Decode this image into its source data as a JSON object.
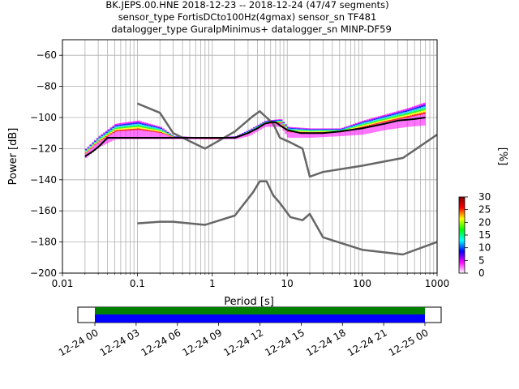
{
  "chart_data": {
    "type": "line",
    "title_lines": [
      "BK.JEPS.00.HNE   2018-12-23 -- 2018-12-24  (47/47 segments)",
      "sensor_type FortisDCto100Hz(4gmax) sensor_sn TF481",
      "datalogger_type GuralpMinimus+ datalogger_sn MINP-DF59"
    ],
    "xlabel": "Period [s]",
    "ylabel": "Power [dB]",
    "xscale": "log",
    "xlim": [
      0.01,
      1000
    ],
    "ylim": [
      -200,
      -50
    ],
    "xticks": [
      {
        "v": 0.01,
        "label": "0.01"
      },
      {
        "v": 0.1,
        "label": "0.1"
      },
      {
        "v": 1,
        "label": "1"
      },
      {
        "v": 10,
        "label": "10"
      },
      {
        "v": 100,
        "label": "100"
      },
      {
        "v": 1000,
        "label": "1000"
      }
    ],
    "yticks": [
      -60,
      -80,
      -100,
      -120,
      -140,
      -160,
      -180,
      -200
    ],
    "grid": true,
    "series": [
      {
        "color": "#666666",
        "x": [
          0.1,
          0.2,
          0.3,
          0.8,
          2,
          3.5,
          4.3,
          5.3,
          6.5,
          8,
          11,
          16,
          20,
          30,
          100,
          350,
          1000
        ],
        "y": [
          -168,
          -167,
          -167,
          -169,
          -163,
          -148,
          -141,
          -141,
          -150,
          -155,
          -164,
          -166,
          -162,
          -177,
          -185,
          -188,
          -180
        ]
      },
      {
        "color": "#666666",
        "x": [
          0.1,
          0.2,
          0.3,
          0.8,
          2,
          3.5,
          4.3,
          5.3,
          6.5,
          8,
          11,
          16,
          20,
          30,
          100,
          350,
          1000
        ],
        "y": [
          -91,
          -97,
          -110,
          -120,
          -109,
          -99,
          -96,
          -100,
          -104,
          -113,
          -116,
          -120,
          -138,
          -135,
          -131,
          -126,
          -111
        ]
      },
      {
        "color": "#000000",
        "x": [
          0.02,
          0.025,
          0.03,
          0.04,
          0.1,
          0.3,
          1,
          2,
          3,
          4,
          5,
          6,
          7,
          8,
          10,
          15,
          20,
          30,
          50,
          100,
          200,
          300,
          500,
          700
        ],
        "y": [
          -125,
          -122,
          -119,
          -113,
          -113,
          -113,
          -113,
          -113,
          -110,
          -107,
          -104,
          -103,
          -103,
          -105,
          -108,
          -110,
          -110,
          -110,
          -109,
          -107,
          -104,
          -102,
          -101,
          -100
        ]
      }
    ],
    "spread": {
      "x": [
        0.02,
        0.03,
        0.05,
        0.1,
        0.2,
        0.3,
        1,
        2,
        3,
        5,
        8,
        10,
        20,
        50,
        100,
        200,
        400,
        700
      ],
      "upper": [
        -120,
        -112,
        -104,
        -102,
        -106,
        -112,
        -113,
        -112,
        -108,
        -102,
        -101,
        -106,
        -107,
        -107,
        -102,
        -98,
        -94,
        -90
      ],
      "lower": [
        -126,
        -119,
        -114,
        -114,
        -114,
        -114,
        -114,
        -114,
        -112,
        -106,
        -106,
        -113,
        -113,
        -112,
        -111,
        -108,
        -106,
        -105
      ]
    },
    "colorbar": {
      "label": "[%]",
      "ticks": [
        0,
        5,
        10,
        15,
        20,
        25,
        30
      ],
      "range": [
        0,
        30
      ],
      "colors": [
        "#ffffff",
        "#ff00ff",
        "#0000ff",
        "#00ffff",
        "#00ff00",
        "#ffff00",
        "#ff0000",
        "#800000"
      ]
    },
    "coverage": {
      "tick_labels": [
        "12-24 00",
        "12-24 03",
        "12-24 06",
        "12-24 09",
        "12-24 12",
        "12-24 15",
        "12-24 18",
        "12-24 21",
        "12-25 00"
      ],
      "covered_from": "12-24 00",
      "covered_to": "12-25 00",
      "data_color": "#0000ff",
      "segments_color": "#008000"
    }
  }
}
